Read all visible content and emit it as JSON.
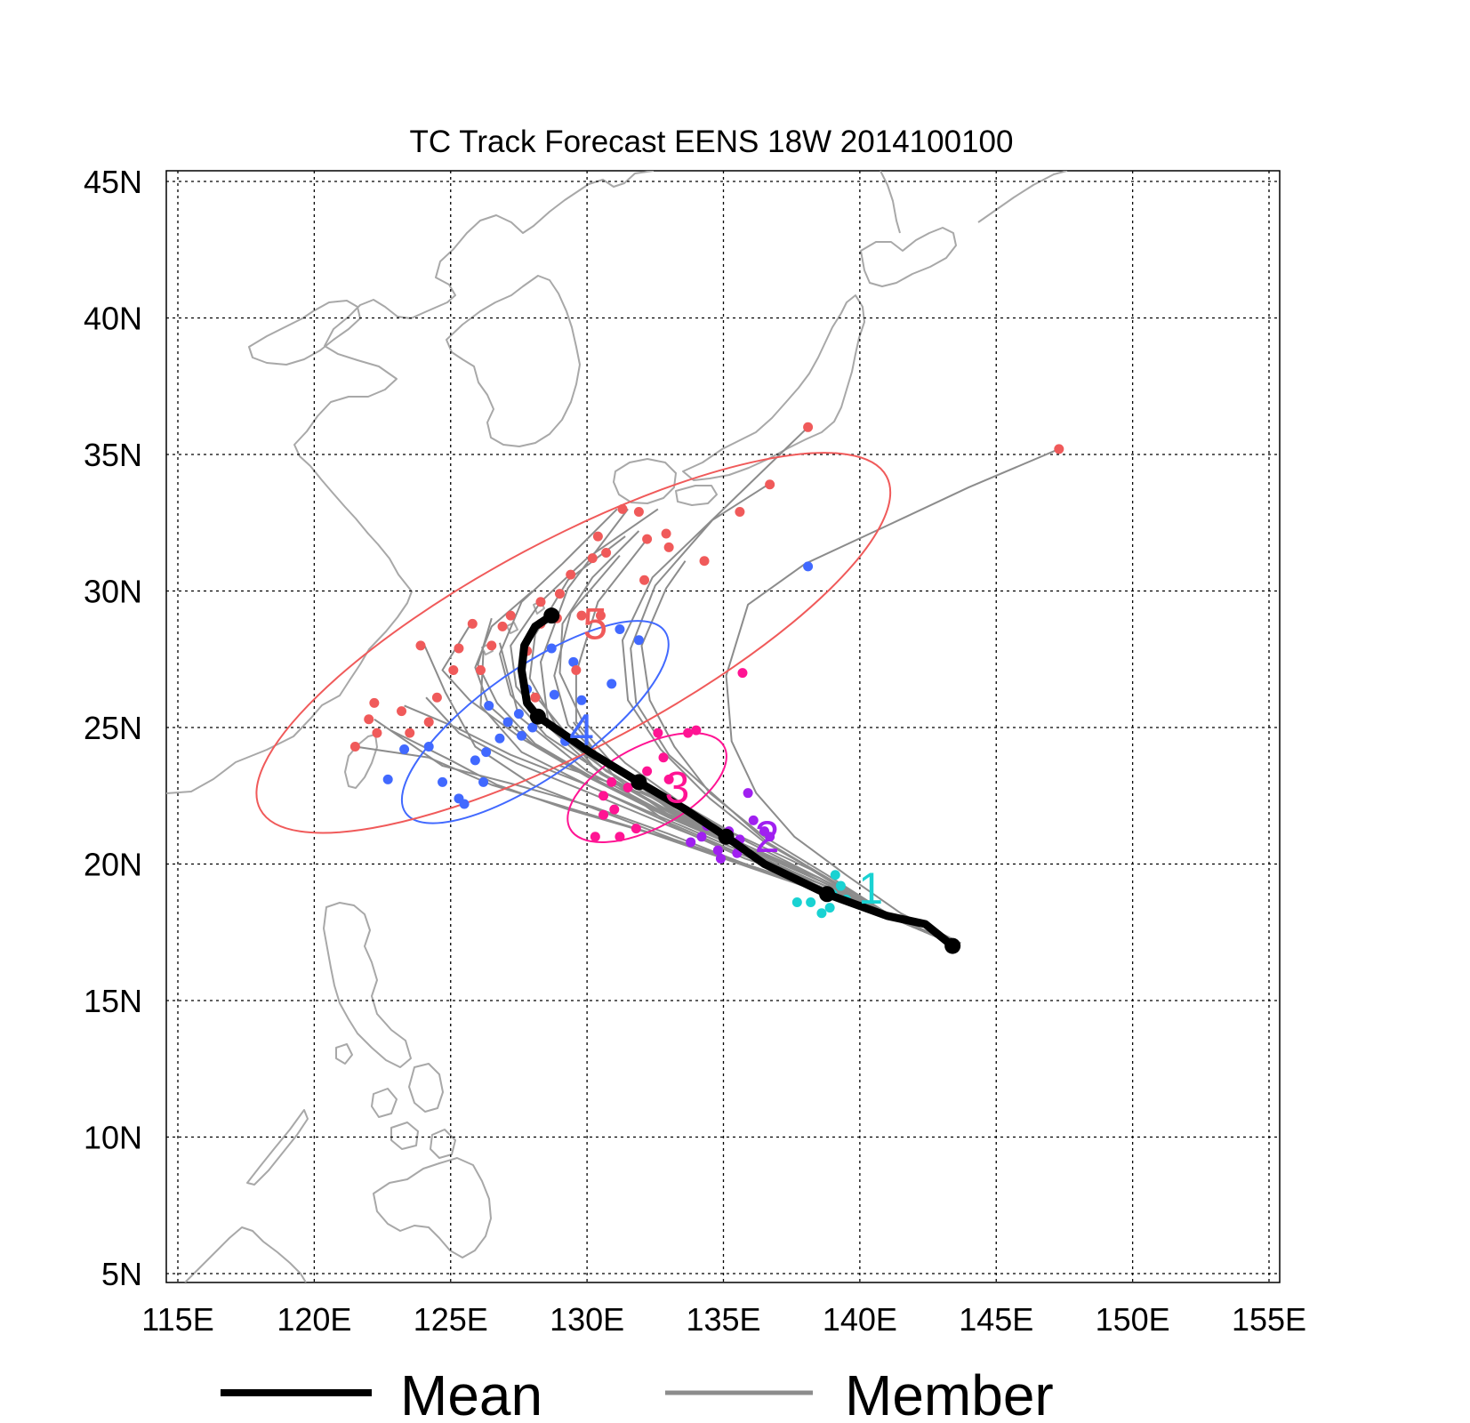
{
  "title": "TC Track Forecast EENS  18W  2014100100",
  "axes": {
    "x_ticks": [
      "115E",
      "120E",
      "125E",
      "130E",
      "135E",
      "140E",
      "145E",
      "150E",
      "155E"
    ],
    "y_ticks": [
      "45N",
      "40N",
      "35N",
      "30N",
      "25N",
      "20N",
      "15N",
      "10N",
      "5N"
    ],
    "lon_range": [
      115,
      155
    ],
    "lat_range": [
      5,
      45
    ],
    "grid": true
  },
  "legend": {
    "mean_label": "Mean",
    "member_label": "Member",
    "position": "bottom"
  },
  "colors": {
    "mean": "#000000",
    "member": "#8c8c8c",
    "coast": "#a8a8a8",
    "day1": "#19d2d2",
    "day2": "#a020f0",
    "day3": "#ff1493",
    "day4": "#4169ff",
    "day5": "#f05a5a"
  },
  "chart_data": {
    "type": "line",
    "title": "TC Track Forecast EENS  18W  2014100100",
    "mean_track": {
      "name": "Mean",
      "lon": [
        143.4,
        142.4,
        141,
        138.8,
        136.5,
        135.1,
        133.6,
        131.9,
        130.1,
        128.2,
        127.8,
        127.6,
        127.7,
        128.1,
        128.7
      ],
      "lat": [
        17.0,
        17.8,
        18.1,
        18.9,
        20.0,
        21.0,
        22.0,
        23.0,
        24.1,
        25.4,
        25.9,
        27.1,
        28.0,
        28.7,
        29.1
      ],
      "day_markers": [
        [
          143.4,
          17.0
        ],
        [
          138.8,
          18.9
        ],
        [
          135.1,
          21.0
        ],
        [
          131.9,
          23.0
        ],
        [
          128.2,
          25.4
        ],
        [
          128.7,
          29.1
        ]
      ]
    },
    "day_labels": [
      {
        "label": "1",
        "lon": 140.4,
        "lat": 19.1
      },
      {
        "label": "2",
        "lon": 136.6,
        "lat": 21.0
      },
      {
        "label": "3",
        "lon": 133.3,
        "lat": 22.8
      },
      {
        "label": "4",
        "lon": 129.8,
        "lat": 24.9
      },
      {
        "label": "5",
        "lon": 130.3,
        "lat": 28.8
      }
    ],
    "uncertainty_ellipses": [
      {
        "day": 3,
        "lon": 132.2,
        "lat": 22.8,
        "rx_deg": 3.2,
        "ry_deg": 1.5,
        "angle_deg": -28
      },
      {
        "day": 4,
        "lon": 128.1,
        "lat": 25.2,
        "rx_deg": 5.8,
        "ry_deg": 2.0,
        "angle_deg": -35
      },
      {
        "day": 5,
        "lon": 129.5,
        "lat": 28.1,
        "rx_deg": 13.0,
        "ry_deg": 3.8,
        "angle_deg": -28
      }
    ],
    "member_tracks": [
      {
        "lon": [
          143.6,
          141,
          138.2,
          135,
          132,
          129
        ],
        "lat": [
          17.0,
          18.1,
          19.8,
          21.3,
          22.6,
          23.6
        ]
      },
      {
        "lon": [
          143.6,
          141,
          138.5,
          136,
          133,
          131,
          129.5
        ],
        "lat": [
          17.0,
          18.2,
          19.3,
          20.4,
          21.8,
          23.2,
          25.2
        ]
      },
      {
        "lon": [
          143.6,
          141,
          138.5,
          135.8,
          133.1,
          130.2,
          128.0
        ],
        "lat": [
          17.0,
          18.2,
          19.3,
          20.2,
          21.4,
          23.6,
          26.3
        ]
      },
      {
        "lon": [
          143.6,
          141,
          138.5,
          135.8,
          132.8,
          130.0,
          127.5,
          126.8
        ],
        "lat": [
          17.0,
          18.2,
          19.5,
          20.7,
          21.9,
          23.4,
          25.4,
          28.1
        ]
      },
      {
        "lon": [
          143.6,
          141,
          138.5,
          135.8,
          133,
          130.5,
          128.6,
          128.3,
          129.3,
          131.5
        ],
        "lat": [
          17.0,
          18.2,
          19.5,
          20.6,
          21.9,
          23.3,
          25.0,
          27.4,
          30.1,
          33.0
        ]
      },
      {
        "lon": [
          143.6,
          141,
          138.5,
          135.5,
          133,
          131,
          129.6,
          129.6,
          130.4,
          132.2
        ],
        "lat": [
          17.0,
          18.2,
          19.4,
          20.7,
          22.0,
          23.6,
          25.2,
          27.0,
          29.6,
          31.9
        ]
      },
      {
        "lon": [
          143.6,
          141,
          138.8,
          136.5,
          134.5,
          132.7,
          131.5,
          131.3,
          132.4,
          135.0,
          138.1
        ],
        "lat": [
          17.0,
          18.2,
          19.5,
          20.8,
          22.4,
          24.2,
          26.0,
          28.2,
          30.5,
          33.0,
          36.0
        ]
      },
      {
        "lon": [
          143.6,
          141,
          138.8,
          136.6,
          134.8,
          133.0,
          131.8,
          131.6,
          132.5,
          134.6,
          136.8
        ],
        "lat": [
          17.0,
          18.2,
          19.5,
          20.8,
          22.4,
          24.0,
          25.9,
          27.9,
          30.2,
          32.6,
          34.0
        ]
      },
      {
        "lon": [
          143.6,
          141,
          138.8,
          136.5,
          134.5,
          133.2,
          132.3,
          132.0,
          132.9,
          133.6
        ],
        "lat": [
          17.0,
          18.2,
          19.6,
          21.0,
          22.6,
          24.3,
          26.0,
          28.0,
          30.1,
          31.1
        ]
      },
      {
        "lon": [
          143.7,
          141.5,
          139.5,
          137.6,
          136.2,
          135.3,
          135.1,
          135.9,
          138.0,
          140.8,
          144.0,
          147.3
        ],
        "lat": [
          17.1,
          18.2,
          19.6,
          21.0,
          22.6,
          24.5,
          26.9,
          29.5,
          31.0,
          32.3,
          33.8,
          35.2
        ]
      },
      {
        "lon": [
          143.6,
          141,
          138.5,
          135.8,
          133.2,
          130.6,
          128.0,
          125.9,
          124.8,
          124.0
        ],
        "lat": [
          17.0,
          18.1,
          19.1,
          20.0,
          20.9,
          21.9,
          22.9,
          24.3,
          26.3,
          28.1
        ]
      },
      {
        "lon": [
          143.6,
          141,
          138.5,
          135.8,
          133.0,
          130.2,
          127.4,
          124.7,
          122.2
        ],
        "lat": [
          17.0,
          18.1,
          19.1,
          20.0,
          21.1,
          22.1,
          22.9,
          23.6,
          25.3
        ]
      },
      {
        "lon": [
          143.6,
          141,
          138.5,
          135.8,
          132.8,
          129.5,
          126.5,
          124.2,
          121.5
        ],
        "lat": [
          17.0,
          18.1,
          19.0,
          20.0,
          21.0,
          22.0,
          22.9,
          23.9,
          24.3
        ]
      },
      {
        "lon": [
          143.6,
          141,
          138.5,
          135.8,
          132.8,
          130.0,
          127.2,
          125.2,
          123.3
        ],
        "lat": [
          17.0,
          18.1,
          19.2,
          20.3,
          21.6,
          22.9,
          24.0,
          25.0,
          25.8
        ]
      },
      {
        "lon": [
          143.6,
          141,
          138.5,
          135.8,
          133.0,
          130.0,
          127.6,
          125.7,
          124.7,
          125.8
        ],
        "lat": [
          17.0,
          18.2,
          19.3,
          20.5,
          21.7,
          23.2,
          24.6,
          26.0,
          27.1,
          28.9
        ]
      },
      {
        "lon": [
          143.6,
          141,
          138.5,
          135.8,
          133.1,
          130.6,
          128.5,
          127.2,
          126.8,
          127.6,
          129.1,
          131.1
        ],
        "lat": [
          17.0,
          18.2,
          19.4,
          20.6,
          21.9,
          23.3,
          24.7,
          26.2,
          27.7,
          29.6,
          31.0,
          33.0
        ]
      },
      {
        "lon": [
          143.6,
          141,
          138.5,
          135.8,
          133.1,
          130.6,
          128.6,
          127.4,
          127.2,
          128.3,
          130.0,
          132.6
        ],
        "lat": [
          17.0,
          18.2,
          19.4,
          20.6,
          22.0,
          23.5,
          25.0,
          26.5,
          28.0,
          29.6,
          31.2,
          33.0
        ]
      },
      {
        "lon": [
          143.6,
          141,
          138.5,
          135.8,
          133.0,
          130.3,
          128.0,
          126.4,
          125.9,
          126.5,
          128.0
        ],
        "lat": [
          17.0,
          18.2,
          19.4,
          20.6,
          21.8,
          23.1,
          24.4,
          25.8,
          27.2,
          28.7,
          30.0
        ]
      },
      {
        "lon": [
          143.6,
          141,
          138.5,
          135.8,
          133.0,
          130.1,
          127.4,
          125.3,
          124.1
        ],
        "lat": [
          17.0,
          18.1,
          19.2,
          20.3,
          21.4,
          22.6,
          23.7,
          24.8,
          26.1
        ]
      },
      {
        "lon": [
          143.6,
          141,
          138.5,
          135.9,
          133.5,
          131.4,
          129.8,
          129.0,
          129.1,
          130.2,
          131.9
        ],
        "lat": [
          17.0,
          18.2,
          19.5,
          20.8,
          22.2,
          23.7,
          25.3,
          27.0,
          28.8,
          30.5,
          32.2
        ]
      },
      {
        "lon": [
          143.6,
          141,
          138.5,
          135.6,
          132.4,
          129.3,
          126.7,
          125.0,
          122.8
        ],
        "lat": [
          17.0,
          18.1,
          19.0,
          20.0,
          21.1,
          22.0,
          22.9,
          23.8,
          24.9
        ]
      },
      {
        "lon": [
          143.6,
          141,
          138.5,
          135.8,
          133.2,
          130.9,
          129.3,
          128.8,
          129.4,
          131.2
        ],
        "lat": [
          17.0,
          18.2,
          19.4,
          20.7,
          22.0,
          23.5,
          25.1,
          26.9,
          29.2,
          31.3
        ]
      },
      {
        "lon": [
          143.6,
          141,
          138.5,
          135.8,
          133.0,
          130.2,
          127.6,
          126.1,
          126.2
        ],
        "lat": [
          17.0,
          18.1,
          19.3,
          20.4,
          21.6,
          22.8,
          24.1,
          25.8,
          27.8
        ]
      },
      {
        "lon": [
          143.6,
          141,
          138.5,
          135.8,
          133.2,
          130.7,
          128.9,
          127.9,
          128.1,
          129.3,
          131.4
        ],
        "lat": [
          17.0,
          18.2,
          19.4,
          20.6,
          22.0,
          23.4,
          25.0,
          26.8,
          28.4,
          30.4,
          32.0
        ]
      },
      {
        "lon": [
          143.6,
          141,
          138.5,
          135.8,
          133.1,
          130.5,
          128.1,
          126.7,
          126.0,
          126.5
        ],
        "lat": [
          17.0,
          18.2,
          19.3,
          20.5,
          21.7,
          23.0,
          24.4,
          25.9,
          27.3,
          29.0
        ]
      }
    ],
    "member_points": {
      "day1": [
        [
          138.2,
          18.6
        ],
        [
          139.0,
          18.9
        ],
        [
          138.6,
          18.2
        ],
        [
          139.3,
          19.2
        ],
        [
          138.9,
          18.4
        ],
        [
          139.5,
          18.7
        ],
        [
          137.7,
          18.6
        ],
        [
          139.1,
          19.6
        ]
      ],
      "day2": [
        [
          134.2,
          21.0
        ],
        [
          135.2,
          21.2
        ],
        [
          134.8,
          20.5
        ],
        [
          135.6,
          20.9
        ],
        [
          136.5,
          21.2
        ],
        [
          135.9,
          22.6
        ],
        [
          134.9,
          20.2
        ],
        [
          133.8,
          20.8
        ],
        [
          136.1,
          21.6
        ],
        [
          135.5,
          20.4
        ],
        [
          134.4,
          21.4
        ],
        [
          136.7,
          21.0
        ]
      ],
      "day3": [
        [
          130.3,
          21.0
        ],
        [
          131.2,
          21.0
        ],
        [
          131.0,
          22.0
        ],
        [
          130.6,
          21.8
        ],
        [
          132.2,
          23.4
        ],
        [
          133.7,
          24.8
        ],
        [
          134.0,
          24.9
        ],
        [
          132.6,
          24.8
        ],
        [
          132.8,
          23.9
        ],
        [
          131.5,
          22.8
        ],
        [
          130.9,
          23.0
        ],
        [
          133.0,
          23.1
        ],
        [
          131.8,
          21.3
        ],
        [
          130.6,
          22.5
        ],
        [
          135.7,
          27.0
        ]
      ],
      "day4": [
        [
          122.7,
          23.1
        ],
        [
          123.3,
          24.2
        ],
        [
          124.7,
          23.0
        ],
        [
          125.3,
          22.4
        ],
        [
          126.2,
          23.0
        ],
        [
          126.3,
          24.1
        ],
        [
          126.8,
          24.6
        ],
        [
          127.1,
          25.2
        ],
        [
          127.6,
          24.7
        ],
        [
          128.0,
          25.0
        ],
        [
          129.2,
          24.5
        ],
        [
          127.5,
          25.5
        ],
        [
          126.4,
          25.8
        ],
        [
          128.8,
          26.2
        ],
        [
          129.8,
          26.0
        ],
        [
          130.9,
          26.6
        ],
        [
          129.5,
          27.4
        ],
        [
          128.7,
          27.9
        ],
        [
          131.9,
          28.2
        ],
        [
          131.2,
          28.6
        ],
        [
          127.8,
          26.4
        ],
        [
          125.5,
          22.2
        ],
        [
          138.1,
          30.9
        ],
        [
          125.9,
          23.8
        ],
        [
          124.2,
          24.3
        ]
      ],
      "day5": [
        [
          121.5,
          24.3
        ],
        [
          122.0,
          25.3
        ],
        [
          122.2,
          25.9
        ],
        [
          122.3,
          24.8
        ],
        [
          123.2,
          25.6
        ],
        [
          123.5,
          24.8
        ],
        [
          123.9,
          28.0
        ],
        [
          124.5,
          26.1
        ],
        [
          125.1,
          27.1
        ],
        [
          125.3,
          27.9
        ],
        [
          125.8,
          28.8
        ],
        [
          126.1,
          27.1
        ],
        [
          126.5,
          28.0
        ],
        [
          126.9,
          28.7
        ],
        [
          127.2,
          29.1
        ],
        [
          127.8,
          27.8
        ],
        [
          128.3,
          29.6
        ],
        [
          128.3,
          28.8
        ],
        [
          128.9,
          29.0
        ],
        [
          129.0,
          29.9
        ],
        [
          129.4,
          30.6
        ],
        [
          129.8,
          29.1
        ],
        [
          130.2,
          31.2
        ],
        [
          130.4,
          32.0
        ],
        [
          130.7,
          31.4
        ],
        [
          131.3,
          33.0
        ],
        [
          131.9,
          32.9
        ],
        [
          132.1,
          30.4
        ],
        [
          132.2,
          31.9
        ],
        [
          133.0,
          31.6
        ],
        [
          132.9,
          32.1
        ],
        [
          134.3,
          31.1
        ],
        [
          135.6,
          32.9
        ],
        [
          136.7,
          33.9
        ],
        [
          138.1,
          36.0
        ],
        [
          147.3,
          35.2
        ],
        [
          128.1,
          26.1
        ],
        [
          129.6,
          27.1
        ],
        [
          130.5,
          29.1
        ],
        [
          124.2,
          25.2
        ]
      ]
    }
  }
}
